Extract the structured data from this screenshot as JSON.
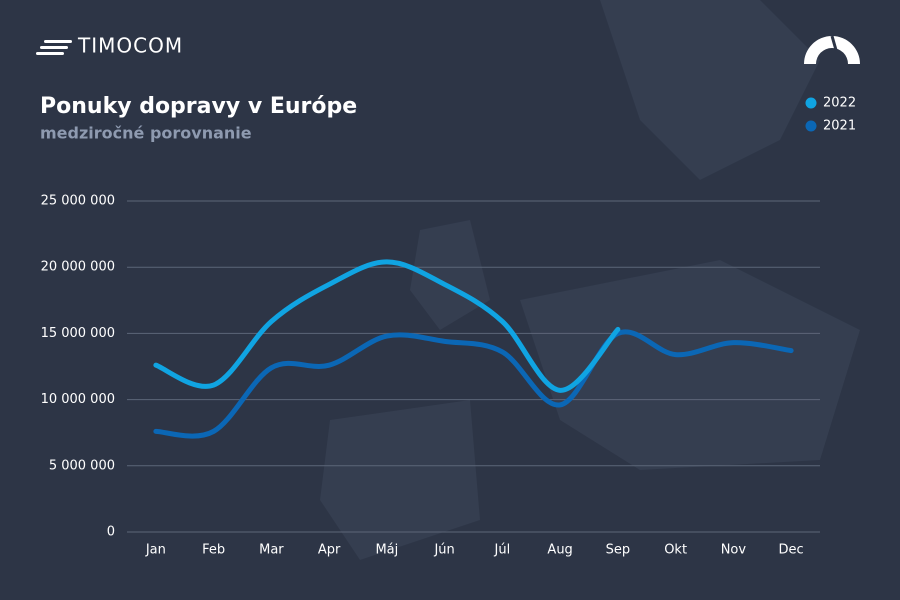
{
  "brand": "TIMOCOM",
  "chart_data": {
    "type": "line",
    "title": "Ponuky dopravy v Európe",
    "subtitle": "medziročné porovnanie",
    "categories": [
      "Jan",
      "Feb",
      "Mar",
      "Apr",
      "Máj",
      "Jún",
      "Júl",
      "Aug",
      "Sep",
      "Okt",
      "Nov",
      "Dec"
    ],
    "series": [
      {
        "name": "2022",
        "color": "#10a4e2",
        "values": [
          12600000,
          11100000,
          15900000,
          18700000,
          20400000,
          18700000,
          15900000,
          10700000,
          15300000,
          null,
          null,
          null
        ]
      },
      {
        "name": "2021",
        "color": "#0b67b5",
        "values": [
          7600000,
          7600000,
          12400000,
          12600000,
          14800000,
          14400000,
          13600000,
          9600000,
          15000000,
          13400000,
          14300000,
          13700000
        ]
      }
    ],
    "ylim": [
      0,
      25000000
    ],
    "yticks": [
      {
        "value": 0,
        "label": "0"
      },
      {
        "value": 5000000,
        "label": "5 000 000"
      },
      {
        "value": 10000000,
        "label": "10 000 000"
      },
      {
        "value": 15000000,
        "label": "15 000 000"
      },
      {
        "value": 20000000,
        "label": "20 000 000"
      },
      {
        "value": 25000000,
        "label": "25 000 000"
      }
    ],
    "grid": true,
    "legend": "top-right"
  }
}
